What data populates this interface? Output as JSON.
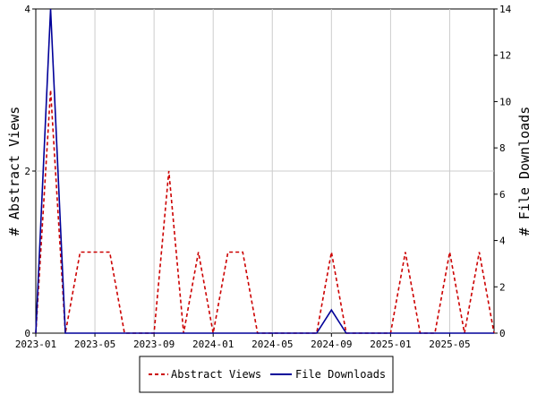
{
  "chart_data": {
    "type": "line",
    "ylabel_left": "# Abstract Views",
    "ylabel_right": "# File Downloads",
    "x_tick_labels": [
      "2023-01",
      "2023-05",
      "2023-09",
      "2024-01",
      "2024-05",
      "2024-09",
      "2025-01",
      "2025-05"
    ],
    "x_months": [
      "2023-01",
      "2023-02",
      "2023-03",
      "2023-04",
      "2023-05",
      "2023-06",
      "2023-07",
      "2023-08",
      "2023-09",
      "2023-10",
      "2023-11",
      "2023-12",
      "2024-01",
      "2024-02",
      "2024-03",
      "2024-04",
      "2024-05",
      "2024-06",
      "2024-07",
      "2024-08",
      "2024-09",
      "2024-10",
      "2024-11",
      "2024-12",
      "2025-01",
      "2025-02",
      "2025-03",
      "2025-04",
      "2025-05",
      "2025-06",
      "2025-07",
      "2025-08"
    ],
    "ylim_left": [
      0,
      4
    ],
    "yticks_left": [
      0,
      2,
      4
    ],
    "ylim_right": [
      0,
      14
    ],
    "yticks_right": [
      0,
      2,
      4,
      6,
      8,
      10,
      12,
      14
    ],
    "legend_position": "bottom",
    "series": [
      {
        "name": "Abstract Views",
        "axis": "left",
        "color": "#cc0000",
        "dash": "dashed",
        "values": [
          0,
          3,
          0,
          1,
          1,
          1,
          0,
          0,
          0,
          2,
          0,
          1,
          0,
          1,
          1,
          0,
          0,
          0,
          0,
          0,
          1,
          0,
          0,
          0,
          0,
          1,
          0,
          0,
          1,
          0,
          1,
          0
        ]
      },
      {
        "name": "File Downloads",
        "axis": "right",
        "color": "#000099",
        "dash": "solid",
        "values": [
          0,
          14,
          0,
          0,
          0,
          0,
          0,
          0,
          0,
          0,
          0,
          0,
          0,
          0,
          0,
          0,
          0,
          0,
          0,
          0,
          1,
          0,
          0,
          0,
          0,
          0,
          0,
          0,
          0,
          0,
          0,
          0
        ]
      }
    ]
  }
}
